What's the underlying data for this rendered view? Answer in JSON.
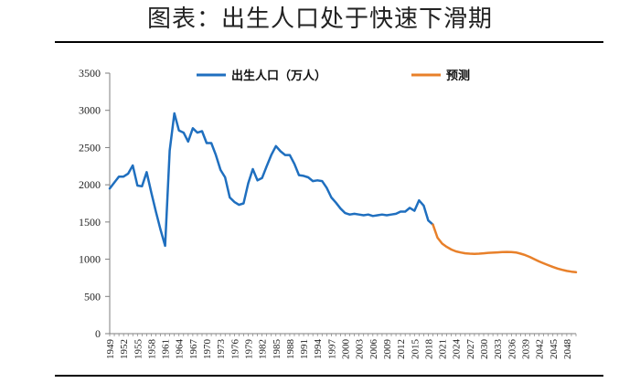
{
  "title": "图表：出生人口处于快速下滑期",
  "colors": {
    "actual": "#1f6fbf",
    "forecast": "#e8802a",
    "axis": "#7f7f7f"
  },
  "chart_data": {
    "type": "line",
    "ylim": [
      0,
      3500
    ],
    "yticks": [
      0,
      500,
      1000,
      1500,
      2000,
      2500,
      3000,
      3500
    ],
    "xlim": [
      1949,
      2050
    ],
    "xticks": [
      1949,
      1952,
      1955,
      1958,
      1961,
      1964,
      1967,
      1970,
      1973,
      1976,
      1979,
      1982,
      1985,
      1988,
      1991,
      1994,
      1997,
      2000,
      2003,
      2006,
      2009,
      2012,
      2015,
      2018,
      2021,
      2024,
      2027,
      2030,
      2033,
      2036,
      2039,
      2042,
      2045,
      2048
    ],
    "grid": false,
    "legend_position": "top",
    "series": [
      {
        "name": "出生人口（万人）",
        "x": [
          1949,
          1950,
          1951,
          1952,
          1953,
          1954,
          1955,
          1956,
          1957,
          1958,
          1959,
          1960,
          1961,
          1962,
          1963,
          1964,
          1965,
          1966,
          1967,
          1968,
          1969,
          1970,
          1971,
          1972,
          1973,
          1974,
          1975,
          1976,
          1977,
          1978,
          1979,
          1980,
          1981,
          1982,
          1983,
          1984,
          1985,
          1986,
          1987,
          1988,
          1989,
          1990,
          1991,
          1992,
          1993,
          1994,
          1995,
          1996,
          1997,
          1998,
          1999,
          2000,
          2001,
          2002,
          2003,
          2004,
          2005,
          2006,
          2007,
          2008,
          2009,
          2010,
          2011,
          2012,
          2013,
          2014,
          2015,
          2016,
          2017,
          2018,
          2019
        ],
        "y": [
          1950,
          2030,
          2110,
          2110,
          2150,
          2260,
          1990,
          1980,
          2170,
          1900,
          1640,
          1400,
          1180,
          2460,
          2960,
          2730,
          2700,
          2580,
          2760,
          2700,
          2720,
          2560,
          2560,
          2400,
          2200,
          2100,
          1830,
          1770,
          1730,
          1750,
          2020,
          2210,
          2060,
          2090,
          2250,
          2400,
          2520,
          2450,
          2400,
          2400,
          2280,
          2130,
          2120,
          2100,
          2050,
          2060,
          2050,
          1960,
          1830,
          1760,
          1680,
          1620,
          1600,
          1610,
          1600,
          1590,
          1600,
          1580,
          1590,
          1600,
          1590,
          1600,
          1610,
          1640,
          1640,
          1690,
          1650,
          1790,
          1720,
          1520,
          1465
        ],
        "color": "#1f6fbf"
      },
      {
        "name": "预测",
        "x": [
          2019,
          2020,
          2021,
          2022,
          2023,
          2024,
          2025,
          2026,
          2027,
          2028,
          2029,
          2030,
          2031,
          2032,
          2033,
          2034,
          2035,
          2036,
          2037,
          2038,
          2039,
          2040,
          2041,
          2042,
          2043,
          2044,
          2045,
          2046,
          2047,
          2048,
          2049,
          2050
        ],
        "y": [
          1465,
          1290,
          1210,
          1165,
          1130,
          1105,
          1090,
          1080,
          1075,
          1072,
          1075,
          1080,
          1085,
          1088,
          1092,
          1095,
          1098,
          1097,
          1090,
          1075,
          1055,
          1030,
          1000,
          970,
          945,
          920,
          895,
          875,
          857,
          842,
          833,
          825
        ],
        "color": "#e8802a"
      }
    ]
  }
}
